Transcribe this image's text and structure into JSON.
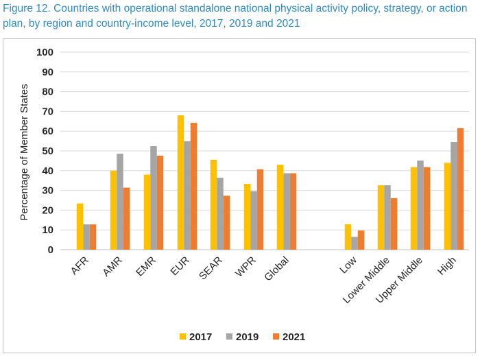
{
  "figure": {
    "title": "Figure 12. Countries with operational standalone national physical activity policy, strategy, or action plan, by region and country-income level, 2017, 2019 and 2021"
  },
  "chart_data": {
    "type": "bar",
    "title": "",
    "xlabel": "",
    "ylabel": "Percentage of Member States",
    "ylim": [
      0,
      100
    ],
    "yticks": [
      0,
      10,
      20,
      30,
      40,
      50,
      60,
      70,
      80,
      90,
      100
    ],
    "categories": [
      "AFR",
      "AMR",
      "EMR",
      "EUR",
      "SEAR",
      "WPR",
      "Global",
      "Low",
      "Lower Middle",
      "Upper Middle",
      "High"
    ],
    "series": [
      {
        "name": "2017",
        "color": "#ffc000",
        "values": [
          23.4,
          40,
          38,
          68,
          45.5,
          33.3,
          43,
          12.9,
          32.6,
          41.8,
          44
        ]
      },
      {
        "name": "2019",
        "color": "#a5a5a5",
        "values": [
          12.8,
          48.6,
          52.4,
          54.9,
          36.4,
          29.6,
          38.7,
          6.5,
          32.6,
          45.1,
          54.5
        ]
      },
      {
        "name": "2021",
        "color": "#ed7d31",
        "values": [
          12.8,
          31.4,
          47.6,
          64.2,
          27.3,
          40.7,
          38.7,
          9.7,
          26.1,
          41.8,
          61.5
        ]
      }
    ],
    "grid": true,
    "legend": "bottom"
  }
}
